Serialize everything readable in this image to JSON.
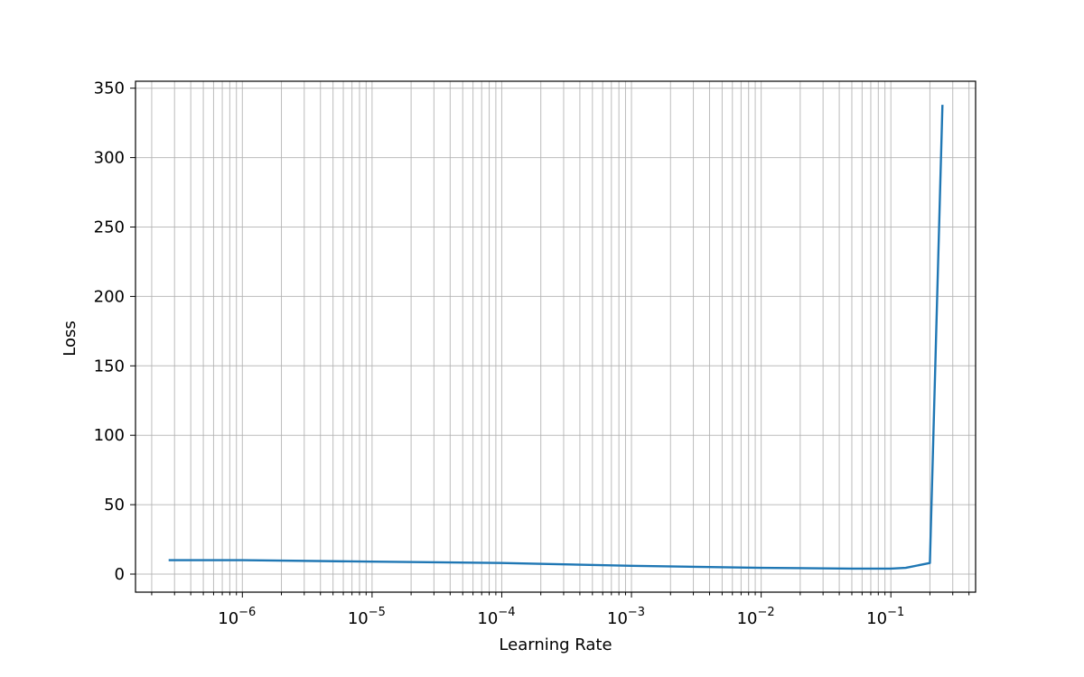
{
  "chart_data": {
    "type": "line",
    "xlabel": "Learning Rate",
    "ylabel": "Loss",
    "xscale": "log",
    "xlim": [
      1.5e-07,
      0.45
    ],
    "ylim": [
      -13,
      355
    ],
    "grid": "major and minor",
    "line_color": "#1f77b4",
    "x_ticks": [
      {
        "value": 1e-06,
        "base": "10",
        "exp": "−6"
      },
      {
        "value": 1e-05,
        "base": "10",
        "exp": "−5"
      },
      {
        "value": 0.0001,
        "base": "10",
        "exp": "−4"
      },
      {
        "value": 0.001,
        "base": "10",
        "exp": "−3"
      },
      {
        "value": 0.01,
        "base": "10",
        "exp": "−2"
      },
      {
        "value": 0.1,
        "base": "10",
        "exp": "−1"
      }
    ],
    "y_ticks": [
      "0",
      "50",
      "100",
      "150",
      "200",
      "250",
      "300",
      "350"
    ],
    "series": [
      {
        "x": [
          2.7e-07,
          1e-06,
          1e-05,
          0.0001,
          0.001,
          0.01,
          0.05,
          0.1,
          0.13,
          0.2,
          0.25
        ],
        "y": [
          10,
          10,
          9,
          8,
          6,
          4.5,
          4,
          4,
          4.5,
          8,
          338
        ]
      }
    ]
  }
}
